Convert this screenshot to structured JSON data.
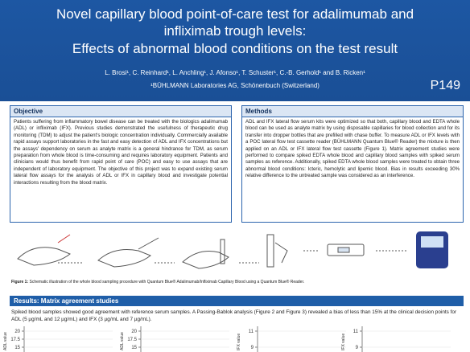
{
  "header": {
    "title_lines": [
      "Novel capillary blood point-of-care test for adalimumab and",
      "infliximab trough levels:",
      "Effects of abnormal blood conditions on the test result"
    ],
    "authors": "L. Brosi¹, C. Reinhard¹, L. Anchling¹, J. Afonso¹, T. Schuster¹, C.-B. Gerhold¹ and B. Ricken¹",
    "affiliation": "¹BÜHLMANN Laboratories AG, Schönenbuch (Switzerland)",
    "poster_id": "P149"
  },
  "objective": {
    "heading": "Objective",
    "text": "Patients suffering from inflammatory bowel disease can be treated with the biologics adalimumab (ADL) or infliximab (IFX). Previous studies demonstrated the usefulness of therapeutic drug monitoring (TDM) to adjust the patient's biologic concentration individually. Commercially available rapid assays support laboratories in the fast and easy detection of ADL and IFX concentrations but the assays' dependency on serum as analyte matrix is a general hindrance for TDM, as serum preparation from whole blood is time-consuming and requires laboratory equipment. Patients and clinicians would thus benefit from rapid point of care (POC) and easy to use assays that are independent of laboratory equipment. The objective of this project was to expand existing serum lateral flow assays for the analysis of ADL or IFX in capillary blood and investigate potential interactions resulting from the blood matrix."
  },
  "methods": {
    "heading": "Methods",
    "text": "ADL and IFX lateral flow serum kits were optimized so that both, capillary blood and EDTA whole blood can be used as analyte matrix by using disposable capillaries for blood collection and for its transfer into dropper bottles that are prefilled with chase buffer. To measure ADL or IFX levels with a POC lateral flow test cassette reader (BÜHLMANN Quantum Blue® Reader) the mixture is then applied on an ADL or IFX lateral flow test cassette (Figure 1). Matrix agreement studies were performed to compare spiked EDTA whole blood and capillary blood samples with spiked serum samples as reference. Additionally, spiked EDTA whole blood samples were treated to obtain three abnormal blood conditions: Icteric, hemolytic and lipemic blood. Bias in results exceeding 30% relative difference to the untreated sample was considered as an interference."
  },
  "figure1": {
    "caption_label": "Figure 1:",
    "caption": "Schematic illustration of the whole blood sampling procedure with Quantum Blue® Adalimumab/Infliximab Capillary Blood using a Quantum Blue® Reader."
  },
  "results": {
    "heading": "Results: Matrix agreement studies",
    "text": "Spiked blood samples showed good agreement with reference serum samples. A Passing-Bablok analysis (Figure 2 and Figure 3) revealed a bias of less than 15% at the clinical decision points for ADL (5 µg/mL and 12 µg/mL) and IFX (3 µg/mL and 7 µg/mL).",
    "plots": [
      {
        "ylabel": "ADL value",
        "yticks": [
          20,
          17.5,
          15
        ]
      },
      {
        "ylabel": "ADL value",
        "yticks": [
          20,
          17.5,
          15
        ]
      },
      {
        "ylabel": "IFX value",
        "yticks": [
          11,
          9
        ]
      },
      {
        "ylabel": "IFX value",
        "yticks": [
          11,
          9
        ]
      }
    ]
  }
}
